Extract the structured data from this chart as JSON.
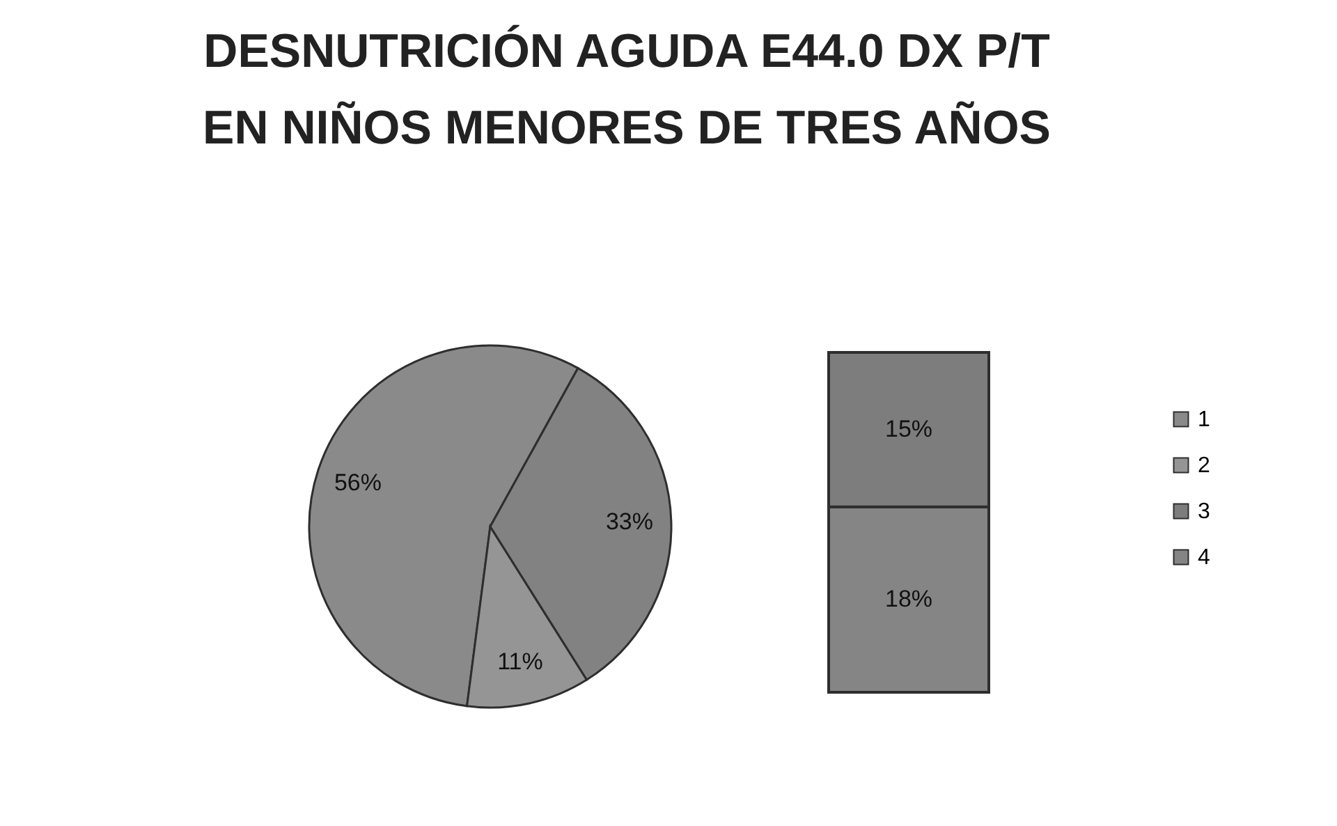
{
  "chart_data": [
    {
      "type": "pie",
      "title": "DESNUTRICIÓN AGUDA E44.0 DX P/T\nEN NIÑOS MENORES DE TRES AÑOS",
      "categories": [
        "1",
        "2",
        null
      ],
      "values": [
        56,
        11,
        33
      ],
      "value_labels": [
        "56%",
        "11%",
        "33%"
      ],
      "colors": [
        "#8a8a8a",
        "#959595",
        "#828282"
      ],
      "legend": "right"
    },
    {
      "type": "bar",
      "stacked": true,
      "categories": [
        null
      ],
      "series": [
        {
          "name": "4",
          "color": "#858585",
          "values": [
            18
          ],
          "value_labels": [
            "18%"
          ]
        },
        {
          "name": "3",
          "color": "#7d7d7d",
          "values": [
            15
          ],
          "value_labels": [
            "15%"
          ]
        }
      ],
      "legend": "right"
    }
  ]
}
